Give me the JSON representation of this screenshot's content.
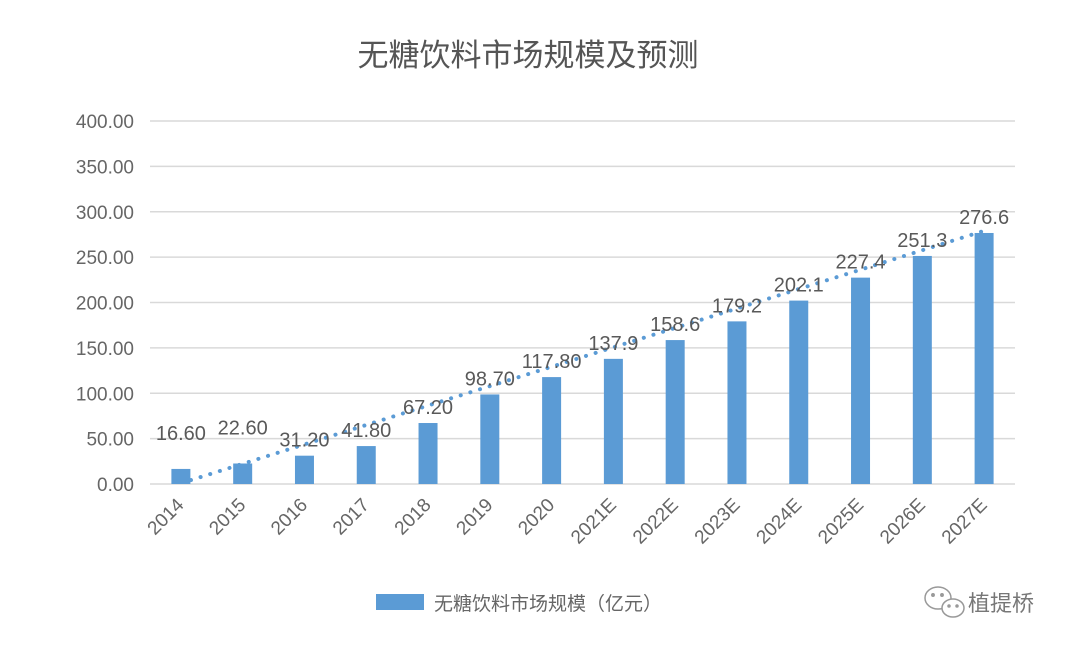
{
  "chart_data": {
    "type": "bar",
    "title": "无糖饮料市场规模及预测",
    "xlabel": "",
    "ylabel": "",
    "ylim": [
      0,
      400
    ],
    "yticks": [
      "0.00",
      "50.00",
      "100.00",
      "150.00",
      "200.00",
      "250.00",
      "300.00",
      "350.00",
      "400.00"
    ],
    "grid": true,
    "legend_position": "bottom",
    "categories": [
      "2014",
      "2015",
      "2016",
      "2017",
      "2018",
      "2019",
      "2020",
      "2021E",
      "2022E",
      "2023E",
      "2024E",
      "2025E",
      "2026E",
      "2027E"
    ],
    "series": [
      {
        "name": "无糖饮料市场规模（亿元）",
        "values": [
          16.6,
          22.6,
          31.2,
          41.8,
          67.2,
          98.7,
          117.8,
          137.9,
          158.6,
          179.2,
          202.1,
          227.4,
          251.3,
          276.6
        ],
        "labels": [
          "16.60",
          "22.60",
          "31.20",
          "41.80",
          "67.20",
          "98.70",
          "117.80",
          "137.9",
          "158.6",
          "179.2",
          "202.1",
          "227.4",
          "251.3",
          "276.6"
        ],
        "color": "#5B9BD5"
      }
    ],
    "trendline": {
      "type": "linear",
      "style": "dotted",
      "color": "#5B9BD5"
    }
  },
  "watermark": {
    "text": "植提桥",
    "icon": "wechat-icon"
  }
}
